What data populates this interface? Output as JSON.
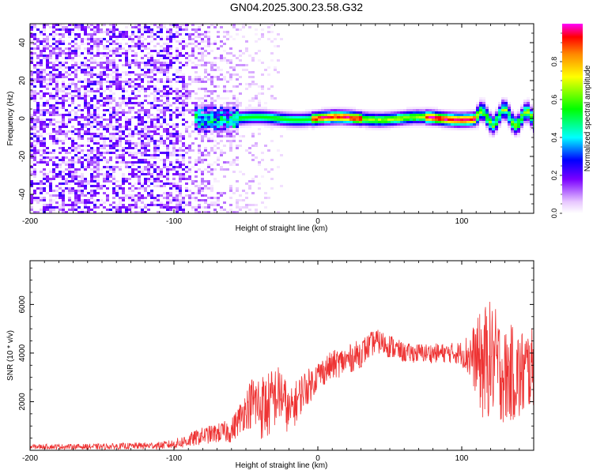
{
  "figure": {
    "title": "GN04.2025.300.23.58.G32"
  },
  "colors": {
    "snr_line": "#ee3333",
    "axis": "#000000",
    "background": "#ffffff"
  },
  "chart_data": [
    {
      "type": "heatmap",
      "xlabel": "Height of straight line (km)",
      "ylabel": "Frequency (Hz)",
      "xlim": [
        -200,
        150
      ],
      "ylim": [
        -50,
        50
      ],
      "xticks": [
        -200,
        -100,
        0,
        100
      ],
      "yticks": [
        -40,
        -20,
        0,
        20,
        40
      ],
      "grid": false,
      "colorbar": {
        "label": "Normalized spectral amplitude",
        "range": [
          0,
          1
        ],
        "ticks": [
          0.0,
          0.2,
          0.4,
          0.6,
          0.8
        ],
        "colormap": "rainbow (white-violet-blue-cyan-green-yellow-orange-red-magenta)"
      },
      "features": [
        {
          "x_range": [
            -200,
            -90
          ],
          "frequency_range": [
            -50,
            50
          ],
          "amplitude": [
            0.0,
            0.2
          ],
          "description_level": "broadband noise"
        },
        {
          "x_range": [
            -90,
            -25
          ],
          "frequency_range": [
            -50,
            50
          ],
          "amplitude": [
            0.0,
            0.1
          ],
          "description_level": "weak noise"
        },
        {
          "x_range": [
            -85,
            150
          ],
          "frequency_center": 0,
          "amplitude": [
            0.2,
            1.0
          ],
          "description_level": "narrow band near 0 Hz"
        },
        {
          "x_range": [
            -5,
            30
          ],
          "frequency_center": 0,
          "amplitude": [
            0.8,
            1.0
          ]
        },
        {
          "x_range": [
            75,
            110
          ],
          "frequency_center": 1,
          "amplitude": [
            0.8,
            1.0
          ]
        }
      ]
    },
    {
      "type": "line",
      "xlabel": "Height of straight line (km)",
      "ylabel": "SNR (10 * v/v)",
      "xlim": [
        -200,
        150
      ],
      "ylim": [
        0,
        7800
      ],
      "xticks": [
        -200,
        -100,
        0,
        100
      ],
      "yticks": [
        2000,
        4000,
        6000
      ],
      "grid": false,
      "series": [
        {
          "x": [
            -200,
            -150,
            -110,
            -100,
            -90,
            -80,
            -70,
            -60,
            -50,
            -45,
            -40,
            -35,
            -30,
            -25,
            -20,
            -15,
            -10,
            -5,
            0,
            10,
            20,
            30,
            40,
            45,
            50,
            60,
            70,
            80,
            90,
            100,
            110,
            115,
            120,
            125,
            130,
            135,
            140,
            145,
            150
          ],
          "y": [
            150,
            150,
            200,
            250,
            400,
            600,
            700,
            800,
            1700,
            2000,
            1800,
            1800,
            2200,
            2300,
            1500,
            2000,
            2500,
            2700,
            3100,
            3500,
            3700,
            4000,
            4500,
            4400,
            4300,
            4000,
            4000,
            4000,
            4000,
            4000,
            3800,
            3500,
            3800,
            3500,
            3000,
            3200,
            3000,
            3300,
            3400
          ],
          "y_spread": [
            100,
            120,
            150,
            200,
            300,
            350,
            400,
            500,
            800,
            1200,
            1400,
            1400,
            1300,
            1200,
            900,
            900,
            800,
            700,
            600,
            600,
            600,
            600,
            500,
            500,
            500,
            400,
            400,
            400,
            400,
            500,
            1500,
            2500,
            2400,
            2200,
            2000,
            2000,
            2000,
            1800,
            1600
          ]
        }
      ]
    }
  ]
}
